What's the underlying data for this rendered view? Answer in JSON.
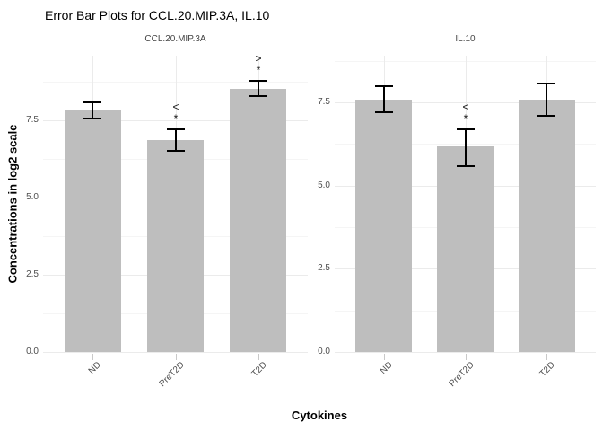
{
  "title": "Error Bar Plots for CCL.20.MIP.3A, IL.10",
  "axes": {
    "y_label": "Concentrations in log2 scale",
    "x_label": "Cytokines"
  },
  "colors": {
    "background": "#ffffff",
    "bar_fill": "#bebebe",
    "error_bar": "#000000",
    "grid_major": "#ebebeb",
    "grid_minor": "#f5f5f5",
    "tick_label": "#4d4d4d",
    "axis_tick": "#c9c9c9",
    "annotation": "#111111"
  },
  "chart_data": [
    {
      "type": "bar",
      "title": "CCL.20.MIP.3A",
      "categories": [
        "ND",
        "PreT2D",
        "T2D"
      ],
      "values": [
        7.83,
        6.86,
        8.51
      ],
      "error_low": [
        7.57,
        6.53,
        8.29
      ],
      "error_high": [
        8.1,
        7.21,
        8.78
      ],
      "annotations": [
        null,
        {
          "symbol": "<",
          "star": "*"
        },
        {
          "symbol": ">",
          "star": "*"
        }
      ],
      "ylim": [
        0,
        9.6
      ],
      "y_major": [
        0,
        2.5,
        5,
        7.5
      ],
      "y_minor": [
        1.25,
        3.75,
        6.25,
        8.75
      ],
      "y_tick_labels": [
        "0.0",
        "2.5",
        "5.0",
        "7.5"
      ],
      "grid": true,
      "legend": "none"
    },
    {
      "type": "bar",
      "title": "IL.10",
      "categories": [
        "ND",
        "PreT2D",
        "T2D"
      ],
      "values": [
        7.59,
        6.17,
        7.59
      ],
      "error_low": [
        7.19,
        5.57,
        7.1
      ],
      "error_high": [
        7.97,
        6.7,
        8.07
      ],
      "annotations": [
        null,
        {
          "symbol": "<",
          "star": "*"
        },
        null
      ],
      "ylim": [
        0,
        8.9
      ],
      "y_major": [
        0,
        2.5,
        5,
        7.5
      ],
      "y_minor": [
        1.25,
        3.75,
        6.25,
        8.75
      ],
      "y_tick_labels": [
        "0.0",
        "2.5",
        "5.0",
        "7.5"
      ],
      "grid": true,
      "legend": "none"
    }
  ]
}
